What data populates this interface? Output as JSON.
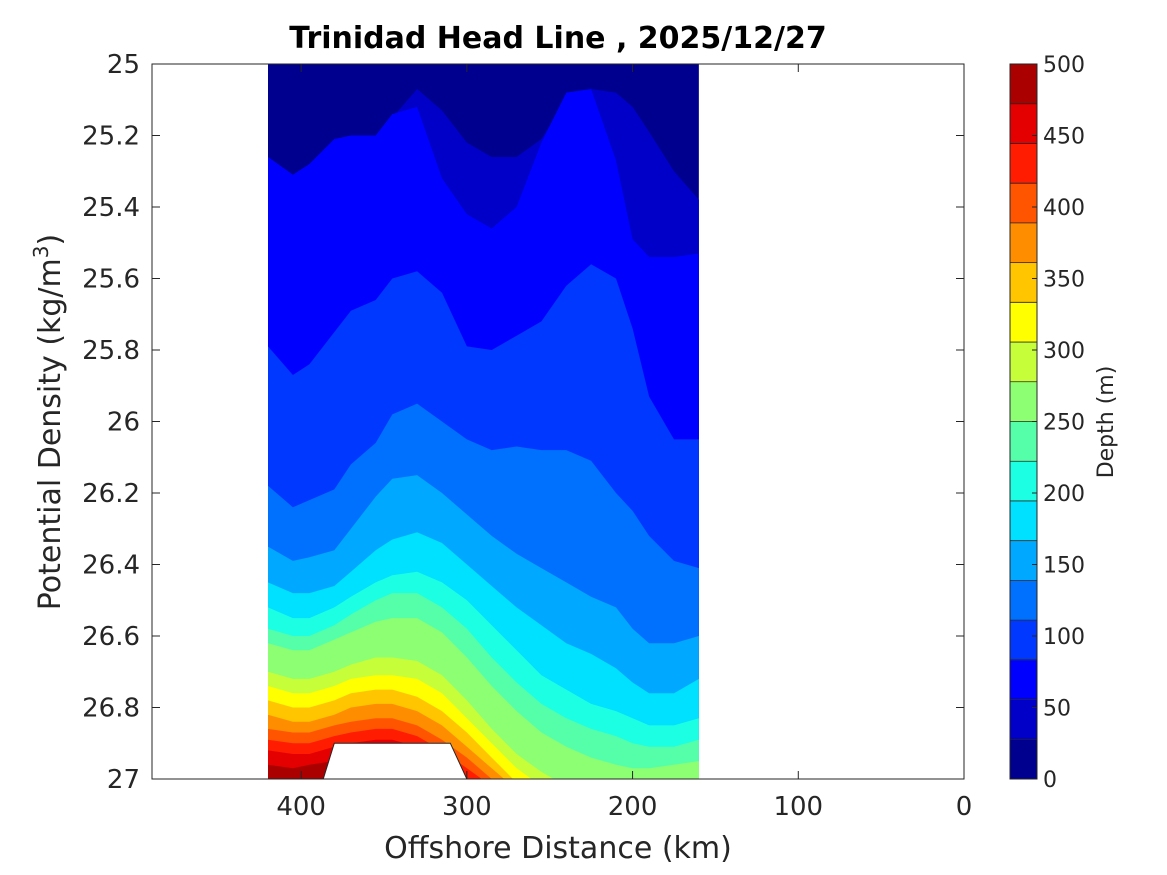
{
  "chart_data": {
    "type": "filled-contour",
    "title": "Trinidad Head Line , 2025/12/27",
    "xlabel": "Offshore Distance (km)",
    "ylabel": {
      "main": "Potential Density (kg/m",
      "sup": "3",
      "close": ")"
    },
    "xlim": [
      490,
      0
    ],
    "ylim": [
      27,
      25
    ],
    "x_reversed": true,
    "y_reversed": true,
    "x_ticks": [
      400,
      300,
      200,
      100,
      0
    ],
    "x_tick_labels": [
      "400",
      "300",
      "200",
      "100",
      "0"
    ],
    "y_ticks": [
      25,
      25.2,
      25.4,
      25.6,
      25.8,
      26,
      26.2,
      26.4,
      26.6,
      26.8,
      27
    ],
    "y_tick_labels": [
      "25",
      "25.2",
      "25.4",
      "25.6",
      "25.8",
      "26",
      "26.2",
      "26.4",
      "26.6",
      "26.8",
      "27"
    ],
    "data_extent_x": [
      420,
      160
    ],
    "colorbar": {
      "label": "Depth (m)",
      "min": 0,
      "max": 500,
      "tick_values": [
        0,
        50,
        100,
        150,
        200,
        250,
        300,
        350,
        400,
        450,
        500
      ],
      "tick_labels": [
        "0",
        "50",
        "100",
        "150",
        "200",
        "250",
        "300",
        "350",
        "400",
        "450",
        "500"
      ],
      "colors": [
        "#00008f",
        "#0000c8",
        "#0000ff",
        "#0038ff",
        "#0070ff",
        "#00a8ff",
        "#00e0ff",
        "#1cffe3",
        "#55ffaa",
        "#8dff72",
        "#c6ff39",
        "#ffff00",
        "#ffc600",
        "#ff8d00",
        "#ff5500",
        "#ff1c00",
        "#e40000",
        "#aa0000"
      ]
    },
    "contours": [
      {
        "depth": 50,
        "x": [
          420,
          405,
          395,
          380,
          370,
          355,
          345,
          330,
          315,
          300,
          285,
          270,
          255,
          240,
          225,
          210,
          200,
          190,
          175,
          160
        ],
        "y": [
          25.26,
          25.31,
          25.28,
          25.21,
          25.2,
          25.2,
          25.15,
          25.07,
          25.13,
          25.22,
          25.26,
          25.26,
          25.21,
          25.1,
          25.07,
          25.08,
          25.12,
          25.19,
          25.3,
          25.38
        ]
      },
      {
        "depth": 75,
        "x": [
          420,
          405,
          395,
          380,
          370,
          355,
          345,
          330,
          315,
          300,
          285,
          270,
          255,
          240,
          225,
          210,
          200,
          190,
          175,
          160
        ],
        "y": [
          25.26,
          25.31,
          25.28,
          25.21,
          25.2,
          25.2,
          25.14,
          25.12,
          25.32,
          25.42,
          25.46,
          25.4,
          25.22,
          25.08,
          25.07,
          25.27,
          25.49,
          25.54,
          25.54,
          25.53
        ]
      },
      {
        "depth": 100,
        "x": [
          420,
          405,
          395,
          380,
          370,
          355,
          345,
          330,
          315,
          300,
          285,
          270,
          255,
          240,
          225,
          210,
          200,
          190,
          175,
          160
        ],
        "y": [
          25.79,
          25.87,
          25.84,
          25.75,
          25.69,
          25.66,
          25.6,
          25.58,
          25.64,
          25.79,
          25.8,
          25.76,
          25.72,
          25.62,
          25.56,
          25.6,
          25.74,
          25.93,
          26.05,
          26.05
        ]
      },
      {
        "depth": 125,
        "x": [
          420,
          405,
          395,
          380,
          370,
          355,
          345,
          330,
          315,
          300,
          285,
          270,
          255,
          240,
          225,
          210,
          200,
          190,
          175,
          160
        ],
        "y": [
          26.18,
          26.24,
          26.22,
          26.19,
          26.12,
          26.06,
          25.98,
          25.95,
          26,
          26.05,
          26.08,
          26.07,
          26.08,
          26.08,
          26.11,
          26.2,
          26.25,
          26.32,
          26.39,
          26.41
        ]
      },
      {
        "depth": 150,
        "x": [
          420,
          405,
          395,
          380,
          370,
          355,
          345,
          330,
          315,
          300,
          285,
          270,
          255,
          240,
          225,
          210,
          200,
          190,
          175,
          160
        ],
        "y": [
          26.35,
          26.39,
          26.38,
          26.36,
          26.3,
          26.21,
          26.16,
          26.15,
          26.2,
          26.26,
          26.32,
          26.37,
          26.41,
          26.45,
          26.49,
          26.52,
          26.58,
          26.62,
          26.62,
          26.6
        ]
      },
      {
        "depth": 175,
        "x": [
          420,
          405,
          395,
          380,
          370,
          355,
          345,
          330,
          315,
          300,
          285,
          270,
          255,
          240,
          225,
          210,
          200,
          190,
          175,
          160
        ],
        "y": [
          26.45,
          26.48,
          26.48,
          26.46,
          26.42,
          26.36,
          26.33,
          26.31,
          26.34,
          26.4,
          26.46,
          26.52,
          26.57,
          26.62,
          26.65,
          26.69,
          26.73,
          26.76,
          26.76,
          26.72
        ]
      },
      {
        "depth": 200,
        "x": [
          420,
          405,
          395,
          380,
          370,
          355,
          345,
          330,
          315,
          300,
          285,
          270,
          255,
          240,
          225,
          210,
          200,
          190,
          175,
          160
        ],
        "y": [
          26.52,
          26.55,
          26.55,
          26.52,
          26.49,
          26.45,
          26.43,
          26.42,
          26.45,
          26.5,
          26.57,
          26.64,
          26.71,
          26.75,
          26.79,
          26.81,
          26.83,
          26.85,
          26.85,
          26.83
        ]
      },
      {
        "depth": 225,
        "x": [
          420,
          405,
          395,
          380,
          370,
          355,
          345,
          330,
          315,
          300,
          285,
          270,
          255,
          240,
          225,
          210,
          200,
          190,
          175,
          160
        ],
        "y": [
          26.58,
          26.6,
          26.6,
          26.57,
          26.54,
          26.5,
          26.48,
          26.48,
          26.52,
          26.58,
          26.66,
          26.73,
          26.79,
          26.83,
          26.86,
          26.88,
          26.9,
          26.91,
          26.91,
          26.89
        ]
      },
      {
        "depth": 250,
        "x": [
          420,
          405,
          395,
          380,
          370,
          355,
          345,
          330,
          315,
          300,
          285,
          270,
          255,
          240,
          225,
          210,
          200,
          190,
          175,
          160
        ],
        "y": [
          26.62,
          26.64,
          26.64,
          26.61,
          26.59,
          26.56,
          26.55,
          26.55,
          26.59,
          26.66,
          26.74,
          26.81,
          26.87,
          26.91,
          26.94,
          26.96,
          26.97,
          26.97,
          26.96,
          26.95
        ]
      },
      {
        "depth": 275,
        "x": [
          420,
          405,
          395,
          380,
          370,
          355,
          345,
          330,
          315,
          300,
          285,
          270,
          255,
          240,
          225,
          210,
          200,
          190,
          175,
          160
        ],
        "y": [
          26.66,
          26.68,
          26.68,
          26.65,
          26.63,
          26.61,
          26.61,
          26.61,
          26.65,
          26.72,
          26.8,
          26.87,
          26.93,
          26.97,
          27.0,
          27.02,
          27.02,
          27.02,
          27.01,
          27.0
        ]
      },
      {
        "depth": 300,
        "x": [
          420,
          405,
          395,
          380,
          370,
          355,
          345,
          330,
          315,
          300,
          285,
          270,
          255,
          240,
          225
        ],
        "y": [
          26.7,
          26.72,
          26.72,
          26.7,
          26.68,
          26.66,
          26.66,
          26.67,
          26.71,
          26.78,
          26.86,
          26.93,
          26.98,
          27.02,
          27.05
        ]
      },
      {
        "depth": 325,
        "x": [
          420,
          405,
          395,
          380,
          370,
          355,
          345,
          330,
          315,
          300,
          285,
          270,
          255,
          240
        ],
        "y": [
          26.74,
          26.76,
          26.76,
          26.74,
          26.72,
          26.71,
          26.71,
          26.72,
          26.76,
          26.83,
          26.9,
          26.97,
          27.02,
          27.06
        ]
      },
      {
        "depth": 350,
        "x": [
          420,
          405,
          395,
          380,
          370,
          355,
          345,
          330,
          315,
          300,
          285,
          270,
          255
        ],
        "y": [
          26.78,
          26.8,
          26.8,
          26.78,
          26.76,
          26.75,
          26.75,
          26.77,
          26.81,
          26.87,
          26.94,
          27.01,
          27.06
        ]
      },
      {
        "depth": 375,
        "x": [
          420,
          405,
          395,
          380,
          370,
          355,
          345,
          330,
          315,
          300,
          285,
          270,
          260
        ],
        "y": [
          26.82,
          26.84,
          26.84,
          26.82,
          26.8,
          26.79,
          26.79,
          26.81,
          26.85,
          26.91,
          26.97,
          27.03,
          27.06
        ]
      },
      {
        "depth": 400,
        "x": [
          420,
          405,
          395,
          380,
          370,
          355,
          345,
          330,
          315,
          300,
          285,
          275
        ],
        "y": [
          26.86,
          26.87,
          26.87,
          26.85,
          26.84,
          26.83,
          26.83,
          26.85,
          26.89,
          26.94,
          27.0,
          27.04
        ]
      },
      {
        "depth": 425,
        "x": [
          420,
          405,
          395,
          380,
          370,
          355,
          345,
          330,
          315,
          300,
          285,
          280
        ],
        "y": [
          26.89,
          26.9,
          26.9,
          26.88,
          26.87,
          26.86,
          26.86,
          26.88,
          26.92,
          26.97,
          27.02,
          27.04
        ]
      },
      {
        "depth": 450,
        "x": [
          420,
          405,
          395,
          380,
          370,
          355,
          345,
          330,
          315,
          300,
          290
        ],
        "y": [
          26.92,
          26.93,
          26.93,
          26.91,
          26.9,
          26.89,
          26.89,
          26.91,
          26.95,
          27.0,
          27.04
        ]
      },
      {
        "depth": 475,
        "x": [
          420,
          405,
          395,
          380,
          370,
          355,
          345,
          330,
          315,
          300,
          295
        ],
        "y": [
          26.96,
          26.97,
          26.96,
          26.95,
          26.94,
          26.93,
          26.93,
          26.95,
          26.98,
          27.02,
          27.04
        ]
      }
    ],
    "no_data_region": {
      "x": [
        390,
        380,
        310,
        295
      ],
      "y": [
        27.05,
        26.9,
        26.9,
        27.05
      ]
    }
  }
}
